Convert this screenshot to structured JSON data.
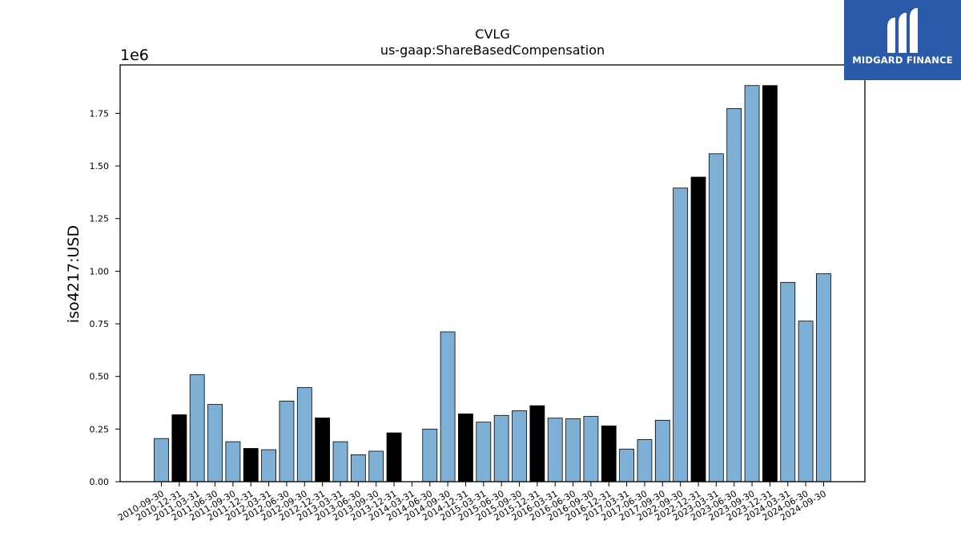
{
  "chart_data": {
    "type": "bar",
    "title": "CVLG",
    "subtitle": "us-gaap:ShareBasedCompensation",
    "xlabel": "",
    "ylabel": "iso4217:USD",
    "y_scale_label": "1e6",
    "ylim": [
      0,
      1.98
    ],
    "yticks": [
      "0.00",
      "0.25",
      "0.50",
      "0.75",
      "1.00",
      "1.25",
      "1.50",
      "1.75"
    ],
    "categories": [
      "2010-09-30",
      "2010-12-31",
      "2011-03-31",
      "2011-06-30",
      "2011-09-30",
      "2011-12-31",
      "2012-03-31",
      "2012-06-30",
      "2012-09-30",
      "2012-12-31",
      "2013-03-31",
      "2013-06-30",
      "2013-09-30",
      "2013-12-31",
      "2014-03-31",
      "2014-06-30",
      "2014-09-30",
      "2014-12-31",
      "2015-03-31",
      "2015-06-30",
      "2015-09-30",
      "2015-12-31",
      "2016-03-31",
      "2016-06-30",
      "2016-09-30",
      "2016-12-31",
      "2017-03-31",
      "2017-06-30",
      "2017-09-30",
      "2022-09-30",
      "2022-12-31",
      "2023-03-31",
      "2023-06-30",
      "2023-09-30",
      "2023-12-31",
      "2024-03-31",
      "2024-06-30",
      "2024-09-30"
    ],
    "values": [
      0.205,
      0.318,
      0.508,
      0.367,
      0.19,
      0.158,
      0.152,
      0.383,
      0.447,
      0.303,
      0.19,
      0.128,
      0.145,
      0.232,
      0.0,
      0.25,
      0.712,
      0.322,
      0.283,
      0.315,
      0.337,
      0.361,
      0.302,
      0.299,
      0.31,
      0.265,
      0.155,
      0.2,
      0.292,
      1.395,
      1.447,
      1.558,
      1.773,
      1.882,
      1.882,
      0.947,
      0.763,
      0.988
    ],
    "bar_colors": [
      "#7eb0d5",
      "#000000",
      "#7eb0d5",
      "#7eb0d5",
      "#7eb0d5",
      "#000000",
      "#7eb0d5",
      "#7eb0d5",
      "#7eb0d5",
      "#000000",
      "#7eb0d5",
      "#7eb0d5",
      "#7eb0d5",
      "#000000",
      "#7eb0d5",
      "#7eb0d5",
      "#7eb0d5",
      "#000000",
      "#7eb0d5",
      "#7eb0d5",
      "#7eb0d5",
      "#000000",
      "#7eb0d5",
      "#7eb0d5",
      "#7eb0d5",
      "#000000",
      "#7eb0d5",
      "#7eb0d5",
      "#7eb0d5",
      "#7eb0d5",
      "#000000",
      "#7eb0d5",
      "#7eb0d5",
      "#7eb0d5",
      "#000000",
      "#7eb0d5",
      "#7eb0d5",
      "#7eb0d5"
    ],
    "grid": false,
    "legend": "none"
  },
  "logo": {
    "text": "MIDGARD FINANCE",
    "icon": "midgard-m-logo-icon",
    "background": "#2a5aa8"
  }
}
